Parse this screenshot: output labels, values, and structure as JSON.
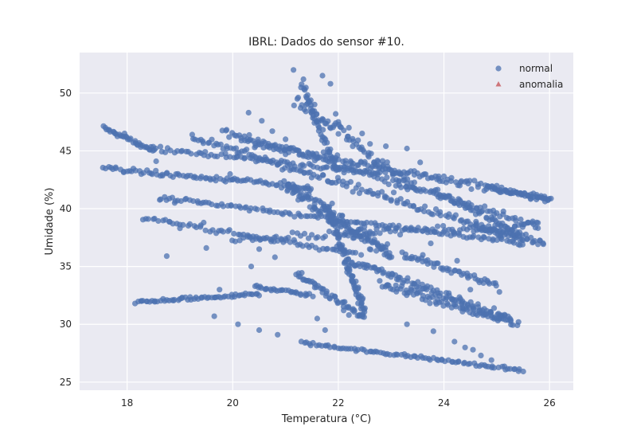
{
  "chart_data": {
    "type": "scatter",
    "title": "IBRL: Dados do sensor #10.",
    "xlabel": "Temperatura (°C)",
    "ylabel": "Umidade (%)",
    "xlim": [
      17.1,
      26.45
    ],
    "ylim": [
      24.3,
      53.5
    ],
    "xticks": [
      18,
      20,
      22,
      24,
      26
    ],
    "yticks": [
      25,
      30,
      35,
      40,
      45,
      50
    ],
    "grid": true,
    "legend_position": "top-right",
    "series": [
      {
        "name": "normal",
        "marker": "circle",
        "color": "#4c72b0",
        "segments": [
          {
            "from": [
              17.55,
              47.0
            ],
            "to": [
              18.5,
              45.0
            ],
            "n": 35,
            "spread": 0.25
          },
          {
            "from": [
              17.55,
              43.5
            ],
            "to": [
              21.5,
              41.8
            ],
            "n": 90,
            "spread": 0.3
          },
          {
            "from": [
              18.45,
              45.3
            ],
            "to": [
              22.8,
              43.0
            ],
            "n": 80,
            "spread": 0.3
          },
          {
            "from": [
              18.6,
              41.0
            ],
            "to": [
              25.5,
              37.0
            ],
            "n": 130,
            "spread": 0.3
          },
          {
            "from": [
              18.3,
              39.2
            ],
            "to": [
              22.4,
              36.0
            ],
            "n": 70,
            "spread": 0.3
          },
          {
            "from": [
              18.15,
              31.9
            ],
            "to": [
              20.5,
              32.6
            ],
            "n": 60,
            "spread": 0.2
          },
          {
            "from": [
              20.4,
              33.3
            ],
            "to": [
              21.5,
              32.5
            ],
            "n": 30,
            "spread": 0.25
          },
          {
            "from": [
              21.3,
              28.4
            ],
            "to": [
              25.5,
              26.0
            ],
            "n": 90,
            "spread": 0.2
          },
          {
            "from": [
              19.2,
              46.2
            ],
            "to": [
              25.4,
              37.5
            ],
            "n": 140,
            "spread": 0.5
          },
          {
            "from": [
              19.8,
              46.8
            ],
            "to": [
              25.8,
              38.5
            ],
            "n": 130,
            "spread": 0.5
          },
          {
            "from": [
              20.2,
              45.8
            ],
            "to": [
              26.0,
              40.8
            ],
            "n": 140,
            "spread": 0.5
          },
          {
            "from": [
              21.2,
              49.5
            ],
            "to": [
              23.5,
              41.5
            ],
            "n": 80,
            "spread": 0.8
          },
          {
            "from": [
              21.3,
              51.0
            ],
            "to": [
              22.0,
              43.0
            ],
            "n": 50,
            "spread": 0.6
          },
          {
            "from": [
              20.0,
              37.5
            ],
            "to": [
              25.8,
              38.5
            ],
            "n": 90,
            "spread": 0.6
          },
          {
            "from": [
              21.0,
              42.0
            ],
            "to": [
              23.0,
              36.0
            ],
            "n": 140,
            "spread": 1.2
          },
          {
            "from": [
              21.8,
              40.0
            ],
            "to": [
              22.5,
              31.0
            ],
            "n": 90,
            "spread": 0.8
          },
          {
            "from": [
              22.2,
              35.5
            ],
            "to": [
              25.2,
              30.5
            ],
            "n": 100,
            "spread": 0.6
          },
          {
            "from": [
              22.8,
              33.5
            ],
            "to": [
              25.4,
              30.0
            ],
            "n": 80,
            "spread": 0.6
          },
          {
            "from": [
              23.2,
              36.0
            ],
            "to": [
              25.0,
              33.5
            ],
            "n": 50,
            "spread": 0.5
          },
          {
            "from": [
              21.2,
              34.5
            ],
            "to": [
              22.5,
              30.5
            ],
            "n": 50,
            "spread": 0.5
          },
          {
            "from": [
              24.8,
              41.8
            ],
            "to": [
              26.0,
              40.8
            ],
            "n": 40,
            "spread": 0.3
          },
          {
            "from": [
              24.6,
              38.5
            ],
            "to": [
              25.9,
              37.0
            ],
            "n": 40,
            "spread": 0.4
          },
          {
            "from": [
              23.8,
              41.5
            ],
            "to": [
              25.5,
              37.8
            ],
            "n": 50,
            "spread": 0.5
          }
        ],
        "scattered_points": [
          [
            21.15,
            52.0
          ],
          [
            21.7,
            51.5
          ],
          [
            21.85,
            50.8
          ],
          [
            22.0,
            47.5
          ],
          [
            22.2,
            47.0
          ],
          [
            22.45,
            46.5
          ],
          [
            22.6,
            45.6
          ],
          [
            22.9,
            45.4
          ],
          [
            23.3,
            45.2
          ],
          [
            23.55,
            44.0
          ],
          [
            23.9,
            42.6
          ],
          [
            24.0,
            42.8
          ],
          [
            24.3,
            42.0
          ],
          [
            21.55,
            49.0
          ],
          [
            21.95,
            48.2
          ],
          [
            20.3,
            48.3
          ],
          [
            20.55,
            47.6
          ],
          [
            20.75,
            46.7
          ],
          [
            21.0,
            46.0
          ],
          [
            19.95,
            43.0
          ],
          [
            19.5,
            36.6
          ],
          [
            19.45,
            38.8
          ],
          [
            20.5,
            36.5
          ],
          [
            20.8,
            35.8
          ],
          [
            20.35,
            35.0
          ],
          [
            19.75,
            33.0
          ],
          [
            19.65,
            30.7
          ],
          [
            20.1,
            30.0
          ],
          [
            20.5,
            29.5
          ],
          [
            20.85,
            29.1
          ],
          [
            21.6,
            30.5
          ],
          [
            21.75,
            29.5
          ],
          [
            22.1,
            31.2
          ],
          [
            22.2,
            30.8
          ],
          [
            23.3,
            30.0
          ],
          [
            23.8,
            29.4
          ],
          [
            23.6,
            36.0
          ],
          [
            23.75,
            37.0
          ],
          [
            22.95,
            38.3
          ],
          [
            22.6,
            38.0
          ],
          [
            24.35,
            32.0
          ],
          [
            24.25,
            35.5
          ],
          [
            24.5,
            33.0
          ],
          [
            24.95,
            31.4
          ],
          [
            25.05,
            32.8
          ],
          [
            25.25,
            30.5
          ],
          [
            24.2,
            28.5
          ],
          [
            24.4,
            28.0
          ],
          [
            24.55,
            27.8
          ],
          [
            24.7,
            27.3
          ],
          [
            24.9,
            26.9
          ],
          [
            17.95,
            46.5
          ],
          [
            18.2,
            45.5
          ],
          [
            18.55,
            44.1
          ],
          [
            18.9,
            40.5
          ],
          [
            19.0,
            38.3
          ],
          [
            18.75,
            35.9
          ],
          [
            20.0,
            42.5
          ],
          [
            21.0,
            44.7
          ],
          [
            23.05,
            41.4
          ]
        ]
      },
      {
        "name": "anomalia",
        "marker": "triangle",
        "color": "#c44e52",
        "points": []
      }
    ]
  }
}
